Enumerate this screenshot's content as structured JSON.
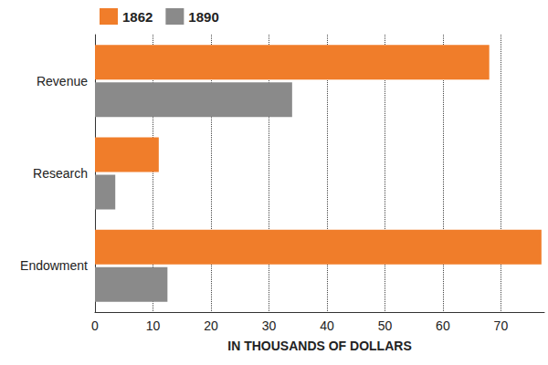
{
  "chart_data": {
    "type": "bar",
    "orientation": "horizontal",
    "categories": [
      "Revenue",
      "Research",
      "Endowment"
    ],
    "series": [
      {
        "name": "1862",
        "color": "#f07d2a",
        "values": [
          68,
          11,
          77
        ]
      },
      {
        "name": "1890",
        "color": "#8a8a8a",
        "values": [
          34,
          3.5,
          12.5
        ]
      }
    ],
    "x_label": "IN THOUSANDS OF DOLLARS",
    "xlim": [
      0,
      77.5
    ],
    "xticks": [
      0,
      10,
      20,
      30,
      40,
      50,
      60,
      70
    ],
    "grid": true,
    "legend": "top-left"
  }
}
